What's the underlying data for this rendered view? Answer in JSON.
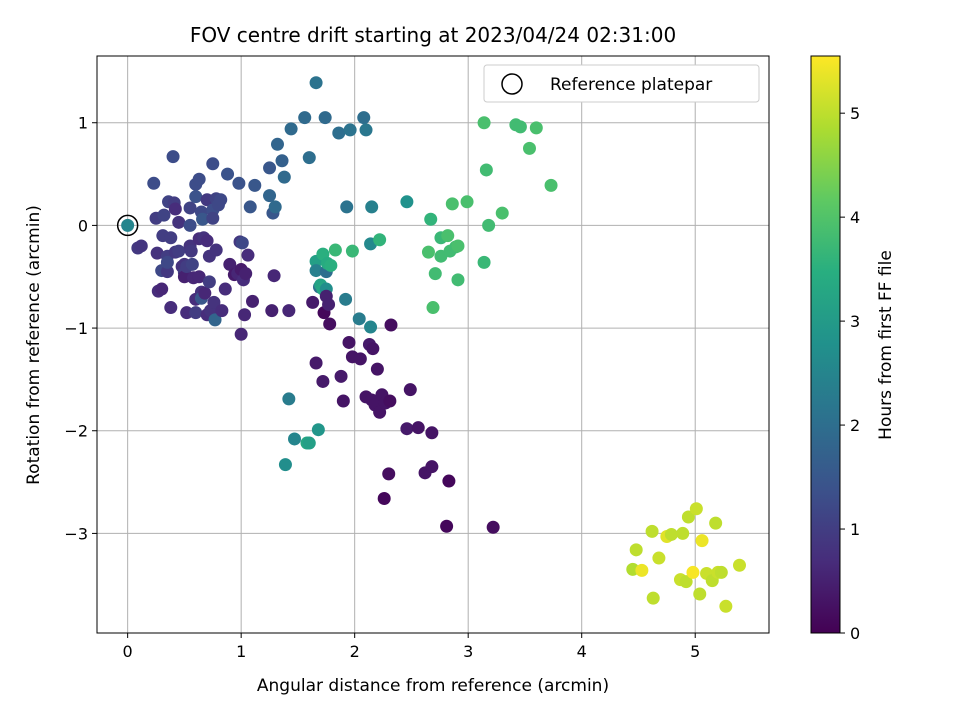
{
  "chart_data": {
    "type": "scatter",
    "title": "FOV centre drift starting at 2023/04/24 02:31:00",
    "xlabel": "Angular distance from reference (arcmin)",
    "ylabel": "Rotation from reference (arcmin)",
    "xlim": [
      -0.27,
      5.65
    ],
    "ylim": [
      -3.97,
      1.65
    ],
    "x_ticks": [
      0,
      1,
      2,
      3,
      4,
      5
    ],
    "y_ticks": [
      1,
      0,
      -1,
      -2,
      -3
    ],
    "grid": true,
    "legend": {
      "placement": "top-right",
      "entries": [
        "Reference platepar"
      ]
    },
    "colorbar": {
      "label": "Hours from first FF file",
      "min": 0,
      "max": 5.55,
      "ticks": [
        0,
        1,
        2,
        3,
        4,
        5
      ],
      "colormap": "viridis"
    },
    "reference_point": {
      "x": 0,
      "y": 0
    },
    "points": [
      [
        0.09,
        -0.22,
        0.9
      ],
      [
        0.12,
        -0.2,
        0.85
      ],
      [
        0.23,
        0.41,
        1.3
      ],
      [
        0.25,
        0.07,
        1.0
      ],
      [
        0.26,
        -0.27,
        0.8
      ],
      [
        0.27,
        -0.64,
        0.7
      ],
      [
        0.3,
        -0.62,
        0.6
      ],
      [
        0.3,
        -0.44,
        1.2
      ],
      [
        0.31,
        -0.1,
        1.0
      ],
      [
        0.32,
        0.1,
        1.1
      ],
      [
        0.35,
        -0.3,
        1.0
      ],
      [
        0.35,
        -0.45,
        0.9
      ],
      [
        0.35,
        -0.36,
        1.2
      ],
      [
        0.36,
        0.23,
        1.1
      ],
      [
        0.38,
        -0.8,
        0.7
      ],
      [
        0.38,
        -0.12,
        1.0
      ],
      [
        0.4,
        0.67,
        1.3
      ],
      [
        0.41,
        0.22,
        1.0
      ],
      [
        0.42,
        -0.26,
        0.9
      ],
      [
        0.42,
        0.16,
        0.7
      ],
      [
        0.45,
        0.03,
        0.8
      ],
      [
        0.45,
        -0.25,
        1.0
      ],
      [
        0.48,
        -0.4,
        0.8
      ],
      [
        0.5,
        -0.38,
        0.8
      ],
      [
        0.5,
        -0.46,
        1.0
      ],
      [
        0.5,
        -0.5,
        0.5
      ],
      [
        0.52,
        -0.4,
        1.0
      ],
      [
        0.52,
        -0.85,
        0.7
      ],
      [
        0.55,
        -0.2,
        0.8
      ],
      [
        0.55,
        0.17,
        1.1
      ],
      [
        0.55,
        0.0,
        1.3
      ],
      [
        0.56,
        -0.25,
        0.9
      ],
      [
        0.57,
        -0.38,
        1.1
      ],
      [
        0.58,
        -0.51,
        0.6
      ],
      [
        0.6,
        0.4,
        1.3
      ],
      [
        0.6,
        -0.72,
        0.7
      ],
      [
        0.6,
        0.28,
        1.4
      ],
      [
        0.6,
        -0.85,
        1.0
      ],
      [
        0.63,
        0.45,
        1.3
      ],
      [
        0.63,
        -0.13,
        0.7
      ],
      [
        0.63,
        -0.5,
        0.6
      ],
      [
        0.65,
        -0.65,
        0.8
      ],
      [
        0.65,
        0.13,
        1.2
      ],
      [
        0.65,
        -0.71,
        1.5
      ],
      [
        0.66,
        0.06,
        1.5
      ],
      [
        0.67,
        -0.12,
        0.8
      ],
      [
        0.68,
        -0.66,
        0.6
      ],
      [
        0.7,
        -0.87,
        0.7
      ],
      [
        0.7,
        -0.15,
        0.7
      ],
      [
        0.7,
        0.25,
        0.9
      ],
      [
        0.72,
        -0.3,
        0.8
      ],
      [
        0.72,
        -0.55,
        1.0
      ],
      [
        0.73,
        -0.83,
        0.8
      ],
      [
        0.75,
        0.15,
        1.3
      ],
      [
        0.75,
        0.07,
        1.1
      ],
      [
        0.75,
        0.6,
        1.3
      ],
      [
        0.76,
        -0.75,
        0.8
      ],
      [
        0.77,
        -0.92,
        1.8
      ],
      [
        0.78,
        0.26,
        1.1
      ],
      [
        0.78,
        -0.24,
        0.8
      ],
      [
        0.8,
        0.2,
        1.2
      ],
      [
        0.82,
        0.25,
        1.2
      ],
      [
        0.83,
        -0.83,
        0.7
      ],
      [
        0.86,
        -0.62,
        0.7
      ],
      [
        0.88,
        0.5,
        1.4
      ],
      [
        0.9,
        -0.38,
        0.5
      ],
      [
        0.94,
        -0.48,
        0.4
      ],
      [
        0.97,
        -0.47,
        0.6
      ],
      [
        0.98,
        0.41,
        1.4
      ],
      [
        0.99,
        -0.16,
        0.9
      ],
      [
        1.0,
        -1.06,
        0.6
      ],
      [
        1.0,
        -0.43,
        0.4
      ],
      [
        1.01,
        -0.17,
        1.2
      ],
      [
        1.02,
        -0.53,
        0.7
      ],
      [
        1.03,
        -0.87,
        0.6
      ],
      [
        1.04,
        -0.47,
        0.5
      ],
      [
        1.06,
        -0.29,
        0.7
      ],
      [
        1.08,
        0.18,
        1.5
      ],
      [
        1.1,
        -0.74,
        0.5
      ],
      [
        1.12,
        0.39,
        1.5
      ],
      [
        1.25,
        0.56,
        1.5
      ],
      [
        1.25,
        0.29,
        1.8
      ],
      [
        1.27,
        -0.83,
        0.5
      ],
      [
        1.28,
        0.12,
        1.5
      ],
      [
        1.29,
        -0.49,
        0.6
      ],
      [
        1.3,
        0.18,
        1.9
      ],
      [
        1.32,
        0.79,
        1.8
      ],
      [
        1.36,
        0.63,
        1.7
      ],
      [
        1.38,
        0.47,
        1.9
      ],
      [
        1.39,
        -2.33,
        2.7
      ],
      [
        1.42,
        -0.83,
        0.6
      ],
      [
        1.42,
        -1.69,
        2.3
      ],
      [
        1.44,
        0.94,
        1.9
      ],
      [
        1.47,
        -2.08,
        2.5
      ],
      [
        1.56,
        1.05,
        1.9
      ],
      [
        1.58,
        -2.12,
        3.3
      ],
      [
        1.6,
        0.66,
        2.0
      ],
      [
        1.6,
        -2.12,
        3.1
      ],
      [
        1.63,
        -0.75,
        0.4
      ],
      [
        1.66,
        -1.34,
        0.4
      ],
      [
        1.66,
        -0.35,
        3.1
      ],
      [
        1.66,
        -0.44,
        2.4
      ],
      [
        1.66,
        1.39,
        2.1
      ],
      [
        1.68,
        -1.99,
        2.9
      ],
      [
        1.69,
        -0.6,
        2.0
      ],
      [
        1.7,
        -0.58,
        3.2
      ],
      [
        1.72,
        -1.52,
        0.4
      ],
      [
        1.72,
        -0.28,
        3.5
      ],
      [
        1.72,
        -0.62,
        3.3
      ],
      [
        1.73,
        -0.85,
        0.1
      ],
      [
        1.74,
        1.05,
        1.9
      ],
      [
        1.75,
        -0.62,
        2.7
      ],
      [
        1.75,
        -0.45,
        2.0
      ],
      [
        1.75,
        -0.69,
        0.5
      ],
      [
        1.76,
        -0.37,
        3.4
      ],
      [
        1.77,
        -0.77,
        0.5
      ],
      [
        1.78,
        -0.96,
        0.2
      ],
      [
        1.79,
        -0.39,
        3.5
      ],
      [
        1.83,
        -0.24,
        3.7
      ],
      [
        1.86,
        0.9,
        2.0
      ],
      [
        1.88,
        -1.47,
        0.4
      ],
      [
        1.9,
        -1.71,
        0.3
      ],
      [
        1.92,
        -0.72,
        2.3
      ],
      [
        1.93,
        0.18,
        2.1
      ],
      [
        1.95,
        -1.14,
        0.3
      ],
      [
        1.96,
        0.93,
        2.1
      ],
      [
        1.98,
        -0.25,
        3.7
      ],
      [
        1.98,
        -1.28,
        0.3
      ],
      [
        2.04,
        -0.91,
        2.3
      ],
      [
        2.05,
        -1.3,
        0.3
      ],
      [
        2.08,
        1.05,
        2.0
      ],
      [
        2.1,
        -1.67,
        0.3
      ],
      [
        2.1,
        0.93,
        2.2
      ],
      [
        2.13,
        -1.16,
        0.4
      ],
      [
        2.14,
        -0.18,
        2.6
      ],
      [
        2.14,
        -0.99,
        2.5
      ],
      [
        2.15,
        0.18,
        2.4
      ],
      [
        2.15,
        -1.7,
        0.3
      ],
      [
        2.16,
        -1.2,
        0.3
      ],
      [
        2.18,
        -1.75,
        0.3
      ],
      [
        2.2,
        -1.4,
        0.3
      ],
      [
        2.22,
        -0.14,
        3.6
      ],
      [
        2.22,
        -1.82,
        0.3
      ],
      [
        2.24,
        -1.65,
        0.3
      ],
      [
        2.26,
        -2.66,
        0.1
      ],
      [
        2.27,
        -1.73,
        0.3
      ],
      [
        2.3,
        -2.42,
        0.2
      ],
      [
        2.31,
        -1.71,
        0.2
      ],
      [
        2.32,
        -0.97,
        0.2
      ],
      [
        2.46,
        -1.98,
        0.4
      ],
      [
        2.46,
        0.23,
        2.8
      ],
      [
        2.49,
        -1.6,
        0.3
      ],
      [
        2.56,
        -1.97,
        0.3
      ],
      [
        2.62,
        -2.41,
        0.3
      ],
      [
        2.65,
        -0.26,
        3.9
      ],
      [
        2.67,
        0.06,
        3.6
      ],
      [
        2.68,
        -2.02,
        0.3
      ],
      [
        2.68,
        -2.35,
        0.3
      ],
      [
        2.69,
        -0.8,
        3.9
      ],
      [
        2.71,
        -0.47,
        3.8
      ],
      [
        2.76,
        -0.12,
        3.7
      ],
      [
        2.76,
        -0.3,
        3.8
      ],
      [
        2.81,
        -2.93,
        0.1
      ],
      [
        2.82,
        -0.1,
        3.9
      ],
      [
        2.83,
        -2.49,
        0.1
      ],
      [
        2.84,
        -0.25,
        3.8
      ],
      [
        2.86,
        0.21,
        3.9
      ],
      [
        2.89,
        -0.21,
        3.8
      ],
      [
        2.91,
        -0.53,
        3.8
      ],
      [
        2.91,
        -0.2,
        3.9
      ],
      [
        2.99,
        0.23,
        3.9
      ],
      [
        3.14,
        1.0,
        3.9
      ],
      [
        3.14,
        -0.36,
        3.7
      ],
      [
        3.16,
        0.54,
        3.8
      ],
      [
        3.18,
        0.0,
        3.8
      ],
      [
        3.22,
        -2.94,
        0.2
      ],
      [
        3.3,
        0.12,
        3.9
      ],
      [
        3.42,
        0.98,
        3.8
      ],
      [
        3.46,
        0.96,
        3.8
      ],
      [
        3.54,
        0.75,
        3.9
      ],
      [
        3.6,
        0.95,
        3.9
      ],
      [
        3.73,
        0.39,
        3.9
      ],
      [
        4.45,
        -3.35,
        4.9
      ],
      [
        4.48,
        -3.16,
        5.0
      ],
      [
        4.53,
        -3.36,
        5.4
      ],
      [
        4.62,
        -2.98,
        5.0
      ],
      [
        4.63,
        -3.63,
        5.0
      ],
      [
        4.68,
        -3.24,
        5.1
      ],
      [
        4.75,
        -3.03,
        5.3
      ],
      [
        4.79,
        -3.01,
        5.0
      ],
      [
        4.87,
        -3.45,
        5.1
      ],
      [
        4.89,
        -3.0,
        5.0
      ],
      [
        4.92,
        -3.47,
        5.0
      ],
      [
        4.94,
        -2.84,
        5.0
      ],
      [
        4.98,
        -3.38,
        5.5
      ],
      [
        5.01,
        -2.76,
        5.1
      ],
      [
        5.04,
        -3.59,
        5.0
      ],
      [
        5.06,
        -3.07,
        5.4
      ],
      [
        5.1,
        -3.39,
        5.1
      ],
      [
        5.15,
        -3.46,
        5.0
      ],
      [
        5.18,
        -2.9,
        5.0
      ],
      [
        5.2,
        -3.38,
        5.1
      ],
      [
        5.23,
        -3.38,
        5.0
      ],
      [
        5.27,
        -3.71,
        5.1
      ],
      [
        5.39,
        -3.31,
        5.1
      ]
    ]
  }
}
